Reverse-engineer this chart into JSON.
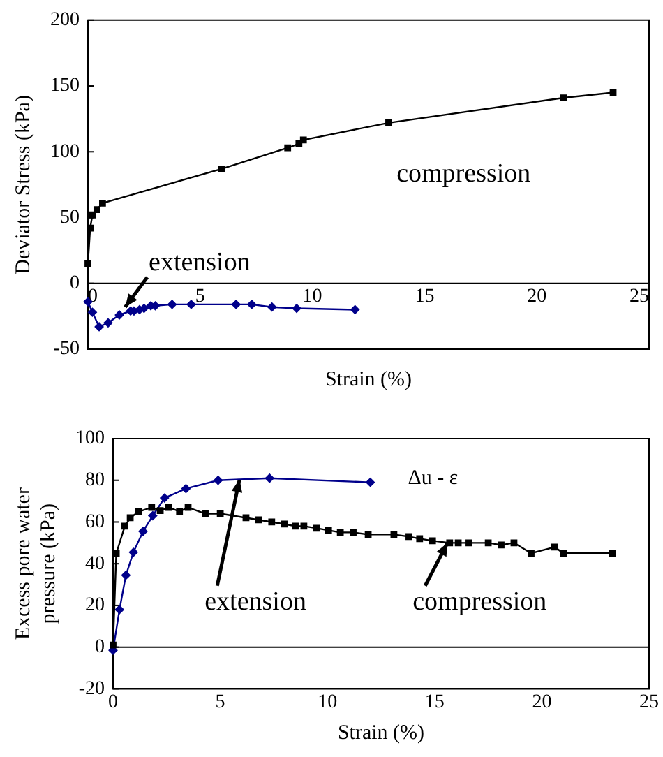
{
  "chart_data": [
    {
      "type": "line",
      "xlabel": "Strain (%)",
      "ylabel": "Deviator Stress (kPa)",
      "xlim": [
        0,
        25
      ],
      "xticks": [
        0,
        5,
        10,
        15,
        20,
        25
      ],
      "ylim": [
        -50,
        200
      ],
      "yticks": [
        -50,
        0,
        50,
        100,
        150,
        200
      ],
      "grid": false,
      "legend": false,
      "series": [
        {
          "color": "#000000",
          "marker": "square",
          "x": [
            0,
            0.1,
            0.2,
            0.4,
            0.65,
            5.95,
            8.9,
            9.4,
            9.6,
            13.4,
            21.2,
            23.4
          ],
          "values": [
            15,
            42,
            52,
            56,
            61,
            87,
            103,
            106,
            109,
            122,
            141,
            145
          ]
        },
        {
          "color": "#00008b",
          "marker": "diamond",
          "x": [
            0,
            0.2,
            0.5,
            0.9,
            1.4,
            1.9,
            2.05,
            2.3,
            2.5,
            2.8,
            3.0,
            3.75,
            4.6,
            6.6,
            7.3,
            8.2,
            9.3,
            11.9
          ],
          "values": [
            -14,
            -22,
            -33,
            -30,
            -24,
            -21,
            -21,
            -20,
            -19,
            -17,
            -17,
            -16,
            -16,
            -16,
            -16,
            -18,
            -19,
            -20
          ]
        }
      ],
      "annotations": [
        {
          "text": "extension",
          "x": 1.4,
          "y": -24
        },
        "compression"
      ]
    },
    {
      "type": "line",
      "xlabel": "Strain (%)",
      "ylabel": "Excess pore water\npressure (kPa)",
      "xlim": [
        0,
        25
      ],
      "xticks": [
        0,
        5,
        10,
        15,
        20,
        25
      ],
      "ylim": [
        -20,
        100
      ],
      "yticks": [
        -20,
        0,
        20,
        40,
        60,
        80,
        100
      ],
      "grid": false,
      "legend": false,
      "ref_lines": [
        {
          "axis": "y",
          "value": 0
        }
      ],
      "series": [
        {
          "color": "#000000",
          "marker": "square",
          "x": [
            0,
            0.15,
            0.55,
            0.8,
            1.2,
            1.8,
            2.2,
            2.6,
            3.1,
            3.5,
            4.3,
            5,
            6.2,
            6.8,
            7.4,
            8,
            8.5,
            8.9,
            9.5,
            10.05,
            10.6,
            11.2,
            11.9,
            13.1,
            13.8,
            14.3,
            14.9,
            15.7,
            16.1,
            16.6,
            17.5,
            18.1,
            18.7,
            19.5,
            20.6,
            21,
            23.3
          ],
          "values": [
            1,
            45,
            58,
            62,
            65,
            67,
            65.5,
            67,
            65,
            67,
            64,
            64,
            62,
            61,
            60,
            59,
            58,
            58,
            57,
            56,
            55,
            55,
            54,
            54,
            53,
            52,
            51,
            50,
            50,
            50,
            50,
            49,
            50,
            45,
            48,
            45,
            45
          ]
        },
        {
          "color": "#00008b",
          "marker": "diamond",
          "x": [
            0,
            0.3,
            0.6,
            0.95,
            1.4,
            1.85,
            2.4,
            3.4,
            4.9,
            7.3,
            12
          ],
          "values": [
            -1.5,
            18,
            34.5,
            45.5,
            55.5,
            63,
            71.5,
            76,
            80,
            81,
            79
          ]
        }
      ],
      "annotations": [
        {
          "text": "extension",
          "x": 5.9,
          "y": 80.5
        },
        {
          "text": "compression",
          "x": 15.6,
          "y": 50
        },
        "Δu - ε"
      ]
    }
  ]
}
